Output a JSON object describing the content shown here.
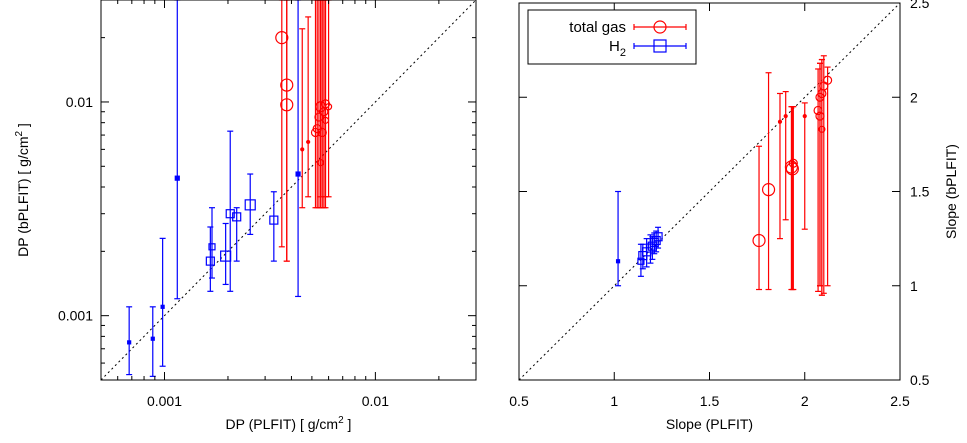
{
  "chart_data": [
    {
      "type": "scatter",
      "xscale": "log",
      "yscale": "log",
      "xlim": [
        0.0005,
        0.03
      ],
      "ylim": [
        0.0005,
        0.03
      ],
      "xticks": [
        {
          "value": 0.001,
          "label": "0.001"
        },
        {
          "value": 0.01,
          "label": "0.01"
        }
      ],
      "yticks": [
        {
          "value": 0.001,
          "label": "0.001"
        },
        {
          "value": 0.01,
          "label": "0.01"
        }
      ],
      "xlabel": "DP (PLFIT)  [ g/cm",
      "xlabel_sup": "2",
      "xlabel_end": " ]",
      "ylabel": "DP (bPLFIT) [ g/cm",
      "ylabel_sup": "2",
      "ylabel_end": " ]",
      "diagonal": true,
      "series": [
        {
          "name": "total gas",
          "color": "#ff0000",
          "marker": "circle",
          "points": [
            {
              "x": 0.0036,
              "y": 0.02,
              "ylo": 0.0021,
              "yhi": 0.03,
              "size": 6
            },
            {
              "x": 0.0038,
              "y": 0.012,
              "ylo": 0.0018,
              "yhi": 0.03,
              "size": 6
            },
            {
              "x": 0.0038,
              "y": 0.0097,
              "ylo": 0.0018,
              "yhi": 0.03,
              "size": 6
            },
            {
              "x": 0.0045,
              "y": 0.006,
              "ylo": 0.0032,
              "yhi": 0.022,
              "size": 1.5
            },
            {
              "x": 0.0048,
              "y": 0.0065,
              "ylo": 0.0036,
              "yhi": 0.025,
              "size": 1.5
            },
            {
              "x": 0.0052,
              "y": 0.0072,
              "ylo": 0.0032,
              "yhi": 0.03,
              "size": 4
            },
            {
              "x": 0.0053,
              "y": 0.0075,
              "ylo": 0.0032,
              "yhi": 0.03,
              "size": 4
            },
            {
              "x": 0.0054,
              "y": 0.0085,
              "ylo": 0.0032,
              "yhi": 0.03,
              "size": 4
            },
            {
              "x": 0.0055,
              "y": 0.0095,
              "ylo": 0.0036,
              "yhi": 0.03,
              "size": 5
            },
            {
              "x": 0.0055,
              "y": 0.0052,
              "ylo": 0.0032,
              "yhi": 0.03,
              "size": 3
            },
            {
              "x": 0.0056,
              "y": 0.0072,
              "ylo": 0.0032,
              "yhi": 0.03,
              "size": 4
            },
            {
              "x": 0.0057,
              "y": 0.009,
              "ylo": 0.0032,
              "yhi": 0.03,
              "size": 4
            },
            {
              "x": 0.0058,
              "y": 0.0098,
              "ylo": 0.0036,
              "yhi": 0.03,
              "size": 4
            },
            {
              "x": 0.0058,
              "y": 0.0082,
              "ylo": 0.0032,
              "yhi": 0.03,
              "size": 3
            },
            {
              "x": 0.006,
              "y": 0.0095,
              "ylo": 0.0036,
              "yhi": 0.03,
              "size": 3
            }
          ]
        },
        {
          "name": "H",
          "name_sub": "2",
          "color": "#0000ff",
          "marker": "square",
          "points": [
            {
              "x": 0.00068,
              "y": 0.00075,
              "ylo": 0.00053,
              "yhi": 0.0011,
              "size": 1.5
            },
            {
              "x": 0.00088,
              "y": 0.00078,
              "ylo": 0.00052,
              "yhi": 0.0011,
              "size": 1.5
            },
            {
              "x": 0.00098,
              "y": 0.0011,
              "ylo": 0.00058,
              "yhi": 0.0023,
              "size": 1.5
            },
            {
              "x": 0.00115,
              "y": 0.0044,
              "ylo": 0.0012,
              "yhi": 0.03,
              "size": 2
            },
            {
              "x": 0.00165,
              "y": 0.0018,
              "ylo": 0.0013,
              "yhi": 0.0026,
              "size": 4
            },
            {
              "x": 0.00168,
              "y": 0.0021,
              "ylo": 0.0015,
              "yhi": 0.0032,
              "size": 3
            },
            {
              "x": 0.00195,
              "y": 0.0019,
              "ylo": 0.0014,
              "yhi": 0.0027,
              "size": 5
            },
            {
              "x": 0.00205,
              "y": 0.003,
              "ylo": 0.0013,
              "yhi": 0.0073,
              "size": 4
            },
            {
              "x": 0.0022,
              "y": 0.0029,
              "ylo": 0.0018,
              "yhi": 0.0032,
              "size": 4
            },
            {
              "x": 0.00255,
              "y": 0.0033,
              "ylo": 0.0024,
              "yhi": 0.0046,
              "size": 5
            },
            {
              "x": 0.0033,
              "y": 0.0028,
              "ylo": 0.0018,
              "yhi": 0.0038,
              "size": 4
            },
            {
              "x": 0.0043,
              "y": 0.0046,
              "ylo": 0.00123,
              "yhi": 0.03,
              "size": 2
            }
          ]
        }
      ]
    },
    {
      "type": "scatter",
      "xlim": [
        0.5,
        2.5
      ],
      "ylim": [
        0.5,
        2.5
      ],
      "xticks": [
        {
          "value": 0.5,
          "label": "0.5"
        },
        {
          "value": 1,
          "label": "1"
        },
        {
          "value": 1.5,
          "label": "1.5"
        },
        {
          "value": 2,
          "label": "2"
        },
        {
          "value": 2.5,
          "label": "2.5"
        }
      ],
      "yticks": [
        {
          "value": 0.5,
          "label": "0.5"
        },
        {
          "value": 1,
          "label": "1"
        },
        {
          "value": 1.5,
          "label": "1.5"
        },
        {
          "value": 2,
          "label": "2"
        },
        {
          "value": 2.5,
          "label": "2.5"
        }
      ],
      "xlabel": "Slope (PLFIT)",
      "ylabel": "Slope (bPLFIT)",
      "yaxis_side": "right",
      "diagonal": true,
      "legend_position": "top-left",
      "series": [
        {
          "name": "total gas",
          "color": "#ff0000",
          "marker": "circle",
          "points": [
            {
              "x": 1.76,
              "y": 1.24,
              "ylo": 0.98,
              "yhi": 1.74,
              "size": 6
            },
            {
              "x": 1.81,
              "y": 1.51,
              "ylo": 0.98,
              "yhi": 2.13,
              "size": 6
            },
            {
              "x": 1.87,
              "y": 1.87,
              "ylo": 1.25,
              "yhi": 2.02,
              "size": 1.5
            },
            {
              "x": 1.9,
              "y": 1.9,
              "ylo": 1.35,
              "yhi": 2.03,
              "size": 1.5
            },
            {
              "x": 1.93,
              "y": 1.63,
              "ylo": 0.98,
              "yhi": 1.95,
              "size": 6
            },
            {
              "x": 1.935,
              "y": 1.62,
              "ylo": 0.98,
              "yhi": 1.95,
              "size": 6
            },
            {
              "x": 1.94,
              "y": 1.65,
              "ylo": 0.98,
              "yhi": 1.95,
              "size": 4
            },
            {
              "x": 2.0,
              "y": 1.9,
              "ylo": 1.3,
              "yhi": 1.97,
              "size": 1.5
            },
            {
              "x": 2.07,
              "y": 1.93,
              "ylo": 0.97,
              "yhi": 2.15,
              "size": 4
            },
            {
              "x": 2.08,
              "y": 2.0,
              "ylo": 1.0,
              "yhi": 2.18,
              "size": 4
            },
            {
              "x": 2.08,
              "y": 1.9,
              "ylo": 1.0,
              "yhi": 2.18,
              "size": 4
            },
            {
              "x": 2.09,
              "y": 2.02,
              "ylo": 0.95,
              "yhi": 2.2,
              "size": 4
            },
            {
              "x": 2.09,
              "y": 1.83,
              "ylo": 0.95,
              "yhi": 2.2,
              "size": 3
            },
            {
              "x": 2.1,
              "y": 2.06,
              "ylo": 0.96,
              "yhi": 2.22,
              "size": 4
            },
            {
              "x": 2.12,
              "y": 2.09,
              "ylo": 1.0,
              "yhi": 2.16,
              "size": 4
            }
          ]
        },
        {
          "name": "H",
          "name_sub": "2",
          "color": "#0000ff",
          "marker": "square",
          "points": [
            {
              "x": 1.02,
              "y": 1.13,
              "ylo": 1.0,
              "yhi": 1.5,
              "size": 1.5
            },
            {
              "x": 1.14,
              "y": 1.13,
              "ylo": 1.05,
              "yhi": 1.22,
              "size": 3
            },
            {
              "x": 1.15,
              "y": 1.16,
              "ylo": 1.09,
              "yhi": 1.22,
              "size": 4
            },
            {
              "x": 1.17,
              "y": 1.18,
              "ylo": 1.1,
              "yhi": 1.25,
              "size": 4
            },
            {
              "x": 1.19,
              "y": 1.2,
              "ylo": 1.12,
              "yhi": 1.27,
              "size": 4
            },
            {
              "x": 1.2,
              "y": 1.21,
              "ylo": 1.14,
              "yhi": 1.26,
              "size": 4
            },
            {
              "x": 1.21,
              "y": 1.23,
              "ylo": 1.17,
              "yhi": 1.28,
              "size": 4
            },
            {
              "x": 1.22,
              "y": 1.24,
              "ylo": 1.18,
              "yhi": 1.29,
              "size": 4
            },
            {
              "x": 1.23,
              "y": 1.26,
              "ylo": 1.2,
              "yhi": 1.31,
              "size": 4
            }
          ]
        }
      ]
    }
  ]
}
